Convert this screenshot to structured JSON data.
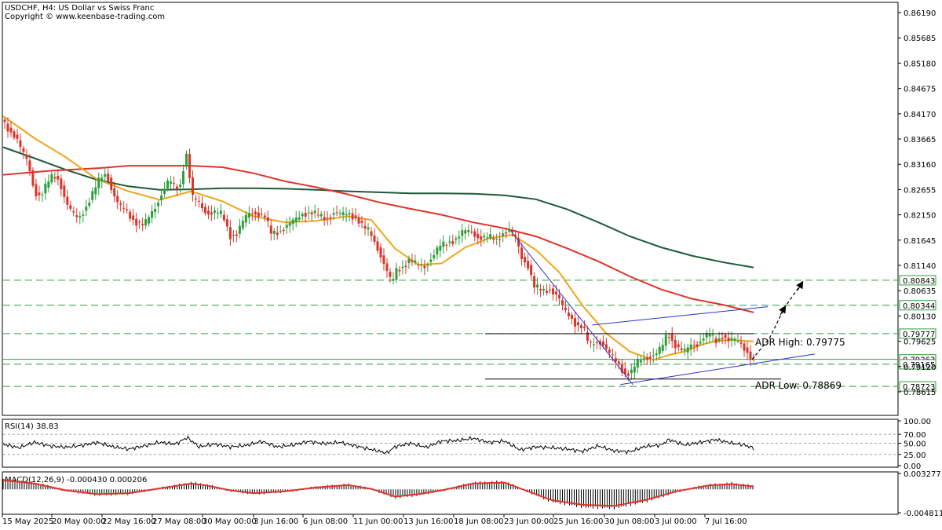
{
  "header": {
    "title": "USDCHF, H4:  US Dollar vs Swiss Franc",
    "copyright": "Copyright © www.keenbase-trading.com"
  },
  "colors": {
    "bull": "#2e9e3c",
    "bear": "#d9352b",
    "ma_fast": "#f0a51a",
    "ma_mid": "#e2322a",
    "ma_slow": "#1d5a3a",
    "level": "#2e9e3c",
    "trend": "#3030c8",
    "adr_line": "#000000",
    "hist": "#000000"
  },
  "chart_data": [
    {
      "type": "candlestick",
      "name": "price",
      "title": "USDCHF, H4:  US Dollar vs Swiss Franc",
      "ylim": [
        0.78615,
        0.8619
      ],
      "y_ticks": [
        "0.86190",
        "0.85685",
        "0.85180",
        "0.84675",
        "0.84170",
        "0.83665",
        "0.83160",
        "0.82655",
        "0.82150",
        "0.81645",
        "0.81140",
        "0.80635",
        "0.80130",
        "0.79625",
        "0.79120",
        "0.78615"
      ],
      "x_ticks": [
        "15 May 2025",
        "20 May 00:00",
        "22 May 16:00",
        "27 May 08:00",
        "30 May 00:00",
        "3 Jun 16:00",
        "6 Jun 08:00",
        "11 Jun 00:00",
        "13 Jun 16:00",
        "18 Jun 08:00",
        "23 Jun 00:00",
        "25 Jun 16:00",
        "30 Jun 08:00",
        "3 Jul 00:00",
        "7 Jul 16:00"
      ],
      "anchors": [
        [
          0,
          0.8405
        ],
        [
          10,
          0.8385
        ],
        [
          18,
          0.8372
        ],
        [
          26,
          0.834
        ],
        [
          34,
          0.8318
        ],
        [
          42,
          0.8262
        ],
        [
          50,
          0.8252
        ],
        [
          58,
          0.8275
        ],
        [
          66,
          0.8295
        ],
        [
          74,
          0.8285
        ],
        [
          82,
          0.824
        ],
        [
          90,
          0.8216
        ],
        [
          98,
          0.8208
        ],
        [
          108,
          0.8233
        ],
        [
          118,
          0.8262
        ],
        [
          126,
          0.8288
        ],
        [
          134,
          0.83
        ],
        [
          140,
          0.8268
        ],
        [
          150,
          0.823
        ],
        [
          158,
          0.8225
        ],
        [
          166,
          0.821
        ],
        [
          174,
          0.8198
        ],
        [
          182,
          0.8192
        ],
        [
          190,
          0.8215
        ],
        [
          198,
          0.8238
        ],
        [
          206,
          0.8263
        ],
        [
          214,
          0.8282
        ],
        [
          222,
          0.8268
        ],
        [
          230,
          0.8279
        ],
        [
          234,
          0.8343
        ],
        [
          238,
          0.833
        ],
        [
          242,
          0.825
        ],
        [
          252,
          0.8238
        ],
        [
          262,
          0.822
        ],
        [
          272,
          0.8219
        ],
        [
          282,
          0.8214
        ],
        [
          292,
          0.8175
        ],
        [
          300,
          0.8177
        ],
        [
          310,
          0.8205
        ],
        [
          318,
          0.8222
        ],
        [
          326,
          0.8219
        ],
        [
          336,
          0.821
        ],
        [
          344,
          0.8177
        ],
        [
          354,
          0.8183
        ],
        [
          364,
          0.8193
        ],
        [
          374,
          0.8202
        ],
        [
          384,
          0.8219
        ],
        [
          394,
          0.822
        ],
        [
          404,
          0.8212
        ],
        [
          414,
          0.8208
        ],
        [
          424,
          0.822
        ],
        [
          434,
          0.8213
        ],
        [
          444,
          0.8218
        ],
        [
          454,
          0.8208
        ],
        [
          462,
          0.8188
        ],
        [
          470,
          0.818
        ],
        [
          480,
          0.815
        ],
        [
          490,
          0.811
        ],
        [
          498,
          0.8075
        ],
        [
          504,
          0.8105
        ],
        [
          512,
          0.8113
        ],
        [
          520,
          0.8124
        ],
        [
          530,
          0.8114
        ],
        [
          540,
          0.8113
        ],
        [
          550,
          0.8132
        ],
        [
          560,
          0.8151
        ],
        [
          570,
          0.8161
        ],
        [
          580,
          0.8168
        ],
        [
          590,
          0.818
        ],
        [
          600,
          0.8182
        ],
        [
          608,
          0.8172
        ],
        [
          616,
          0.8168
        ],
        [
          624,
          0.8168
        ],
        [
          632,
          0.8166
        ],
        [
          640,
          0.818
        ],
        [
          648,
          0.8183
        ],
        [
          656,
          0.8168
        ],
        [
          664,
          0.8131
        ],
        [
          672,
          0.8115
        ],
        [
          680,
          0.807
        ],
        [
          690,
          0.8062
        ],
        [
          700,
          0.8068
        ],
        [
          710,
          0.8052
        ],
        [
          718,
          0.8022
        ],
        [
          726,
          0.8013
        ],
        [
          734,
          0.7996
        ],
        [
          742,
          0.799
        ],
        [
          750,
          0.7952
        ],
        [
          758,
          0.7963
        ],
        [
          766,
          0.7962
        ],
        [
          774,
          0.794
        ],
        [
          782,
          0.7925
        ],
        [
          790,
          0.7913
        ],
        [
          796,
          0.7898
        ],
        [
          804,
          0.79
        ],
        [
          812,
          0.792
        ],
        [
          820,
          0.793
        ],
        [
          830,
          0.7934
        ],
        [
          838,
          0.7938
        ],
        [
          846,
          0.7959
        ],
        [
          850,
          0.7983
        ],
        [
          856,
          0.7965
        ],
        [
          864,
          0.7948
        ],
        [
          872,
          0.794
        ],
        [
          880,
          0.7955
        ],
        [
          888,
          0.7958
        ],
        [
          896,
          0.797
        ],
        [
          904,
          0.7974
        ],
        [
          912,
          0.7963
        ],
        [
          920,
          0.7975
        ],
        [
          928,
          0.7964
        ],
        [
          936,
          0.7963
        ],
        [
          944,
          0.7958
        ],
        [
          952,
          0.7942
        ],
        [
          958,
          0.7926
        ]
      ],
      "ma_fast": [
        [
          0,
          0.8412
        ],
        [
          40,
          0.8368
        ],
        [
          80,
          0.833
        ],
        [
          120,
          0.8286
        ],
        [
          160,
          0.8262
        ],
        [
          200,
          0.8245
        ],
        [
          240,
          0.8262
        ],
        [
          280,
          0.8242
        ],
        [
          320,
          0.8212
        ],
        [
          360,
          0.82
        ],
        [
          400,
          0.8203
        ],
        [
          440,
          0.8212
        ],
        [
          470,
          0.8205
        ],
        [
          500,
          0.8148
        ],
        [
          530,
          0.8115
        ],
        [
          560,
          0.8118
        ],
        [
          590,
          0.815
        ],
        [
          620,
          0.8168
        ],
        [
          650,
          0.8175
        ],
        [
          680,
          0.8145
        ],
        [
          710,
          0.81
        ],
        [
          740,
          0.8033
        ],
        [
          770,
          0.7978
        ],
        [
          800,
          0.7942
        ],
        [
          830,
          0.7925
        ],
        [
          850,
          0.7935
        ],
        [
          870,
          0.7942
        ],
        [
          890,
          0.7955
        ],
        [
          910,
          0.7963
        ],
        [
          930,
          0.7965
        ],
        [
          958,
          0.7962
        ]
      ],
      "ma_mid": [
        [
          0,
          0.8295
        ],
        [
          60,
          0.8303
        ],
        [
          120,
          0.8308
        ],
        [
          160,
          0.8313
        ],
        [
          200,
          0.8313
        ],
        [
          240,
          0.8313
        ],
        [
          280,
          0.831
        ],
        [
          320,
          0.8298
        ],
        [
          360,
          0.8282
        ],
        [
          400,
          0.827
        ],
        [
          440,
          0.8256
        ],
        [
          480,
          0.824
        ],
        [
          520,
          0.8227
        ],
        [
          560,
          0.8215
        ],
        [
          600,
          0.82
        ],
        [
          640,
          0.8188
        ],
        [
          680,
          0.8172
        ],
        [
          720,
          0.8148
        ],
        [
          760,
          0.8122
        ],
        [
          800,
          0.8092
        ],
        [
          840,
          0.8066
        ],
        [
          880,
          0.8047
        ],
        [
          920,
          0.8035
        ],
        [
          958,
          0.802
        ]
      ],
      "ma_slow": [
        [
          0,
          0.835
        ],
        [
          40,
          0.8328
        ],
        [
          80,
          0.8305
        ],
        [
          120,
          0.8285
        ],
        [
          160,
          0.8272
        ],
        [
          200,
          0.8265
        ],
        [
          240,
          0.8266
        ],
        [
          280,
          0.8268
        ],
        [
          320,
          0.8268
        ],
        [
          360,
          0.8267
        ],
        [
          400,
          0.8265
        ],
        [
          440,
          0.8262
        ],
        [
          480,
          0.826
        ],
        [
          520,
          0.8258
        ],
        [
          560,
          0.8258
        ],
        [
          600,
          0.8257
        ],
        [
          640,
          0.8254
        ],
        [
          680,
          0.8246
        ],
        [
          720,
          0.8226
        ],
        [
          760,
          0.82
        ],
        [
          800,
          0.8172
        ],
        [
          840,
          0.815
        ],
        [
          880,
          0.8133
        ],
        [
          920,
          0.812
        ],
        [
          958,
          0.811
        ]
      ],
      "levels": [
        {
          "value": 0.80843,
          "label": "0.80843",
          "style": "dashed"
        },
        {
          "value": 0.80344,
          "label": "0.80344",
          "style": "dashed"
        },
        {
          "value": 0.79777,
          "label": "0.79777",
          "style": "dashed"
        },
        {
          "value": 0.79263,
          "label": "0.79263",
          "style": "solid"
        },
        {
          "value": 0.79165,
          "label": "0.79165",
          "style": "dashed"
        },
        {
          "value": 0.78723,
          "label": "0.78723",
          "style": "dashed"
        }
      ],
      "adr": [
        {
          "label": "ADR High: 0.79775",
          "value": 0.79775
        },
        {
          "label": "ADR Low: 0.78869",
          "value": 0.78869
        }
      ]
    },
    {
      "type": "line",
      "name": "RSI(14)",
      "label": "RSI(14) 38.83",
      "ylim": [
        0,
        100
      ],
      "y_ticks": [
        "100.00",
        "70.00",
        "50.00",
        "25.00",
        "0.00"
      ],
      "levels": [
        70,
        50,
        25
      ],
      "values": [
        [
          0,
          48
        ],
        [
          20,
          40
        ],
        [
          40,
          52
        ],
        [
          60,
          44
        ],
        [
          80,
          41
        ],
        [
          100,
          45
        ],
        [
          120,
          52
        ],
        [
          140,
          42
        ],
        [
          160,
          37
        ],
        [
          180,
          44
        ],
        [
          200,
          52
        ],
        [
          220,
          48
        ],
        [
          235,
          63
        ],
        [
          250,
          42
        ],
        [
          270,
          48
        ],
        [
          290,
          42
        ],
        [
          310,
          45
        ],
        [
          330,
          54
        ],
        [
          350,
          42
        ],
        [
          370,
          46
        ],
        [
          390,
          54
        ],
        [
          410,
          49
        ],
        [
          430,
          52
        ],
        [
          450,
          44
        ],
        [
          470,
          36
        ],
        [
          490,
          28
        ],
        [
          500,
          42
        ],
        [
          520,
          50
        ],
        [
          540,
          41
        ],
        [
          560,
          55
        ],
        [
          580,
          56
        ],
        [
          600,
          61
        ],
        [
          620,
          52
        ],
        [
          640,
          55
        ],
        [
          660,
          35
        ],
        [
          680,
          42
        ],
        [
          700,
          40
        ],
        [
          720,
          37
        ],
        [
          740,
          32
        ],
        [
          760,
          44
        ],
        [
          780,
          33
        ],
        [
          800,
          31
        ],
        [
          820,
          43
        ],
        [
          840,
          46
        ],
        [
          850,
          58
        ],
        [
          870,
          46
        ],
        [
          890,
          52
        ],
        [
          910,
          58
        ],
        [
          930,
          50
        ],
        [
          945,
          47
        ],
        [
          958,
          38.83
        ]
      ]
    },
    {
      "type": "histogram+line",
      "name": "MACD(12,26,9)",
      "label": "MACD(12,26,9) -0.000430 0.000206",
      "ylim": [
        -0.004811,
        0.003277
      ],
      "y_ticks": [
        "0.003277",
        "-0.004811"
      ],
      "signal": [
        [
          0,
          0.0019
        ],
        [
          40,
          0.0012
        ],
        [
          80,
          -0.0002
        ],
        [
          120,
          -0.001
        ],
        [
          160,
          -0.0008
        ],
        [
          200,
          0.0002
        ],
        [
          240,
          0.0012
        ],
        [
          260,
          0.0008
        ],
        [
          290,
          -0.0002
        ],
        [
          320,
          -0.0008
        ],
        [
          360,
          -0.0004
        ],
        [
          400,
          0.0004
        ],
        [
          440,
          0.0009
        ],
        [
          470,
          0.0001
        ],
        [
          500,
          -0.0015
        ],
        [
          530,
          -0.001
        ],
        [
          560,
          -0.0002
        ],
        [
          600,
          0.0012
        ],
        [
          640,
          0.0014
        ],
        [
          660,
          0.0002
        ],
        [
          700,
          -0.0022
        ],
        [
          740,
          -0.0032
        ],
        [
          780,
          -0.0034
        ],
        [
          820,
          -0.0022
        ],
        [
          860,
          -0.0004
        ],
        [
          900,
          0.0008
        ],
        [
          930,
          0.0011
        ],
        [
          958,
          0.0006
        ]
      ]
    }
  ]
}
